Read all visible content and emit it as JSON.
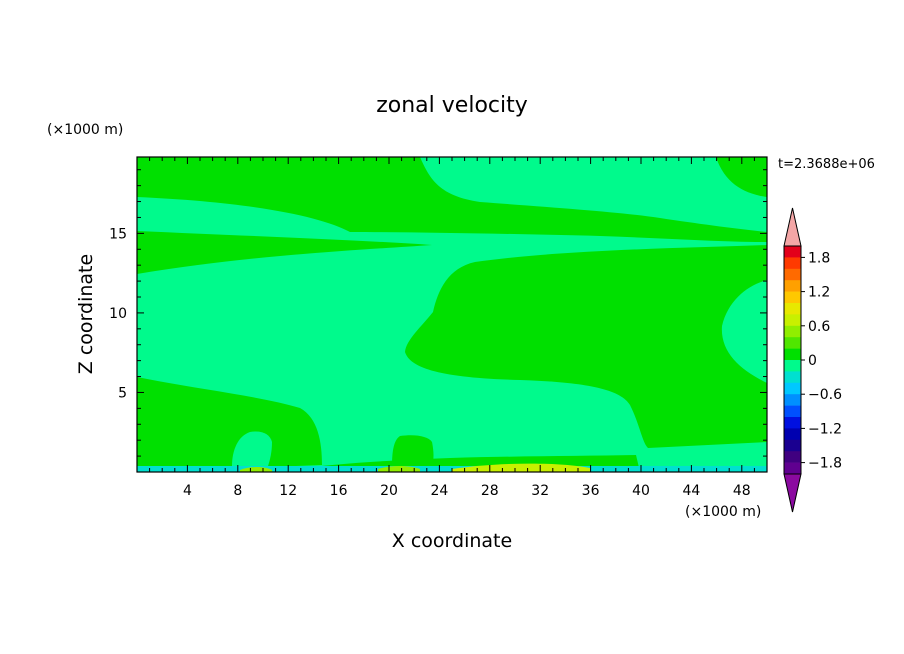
{
  "chart_data": {
    "type": "heatmap",
    "title": "zonal velocity",
    "xlabel": "X coordinate",
    "ylabel": "Z coordinate",
    "x_unit": "(×1000 m)",
    "y_unit": "(×1000 m)",
    "time_label": "t=2.3688e+06",
    "xlim": [
      0,
      50
    ],
    "ylim": [
      0,
      19.8
    ],
    "x_ticks": [
      "4",
      "8",
      "12",
      "16",
      "20",
      "24",
      "28",
      "32",
      "36",
      "40",
      "44",
      "48"
    ],
    "x_tick_values": [
      4,
      8,
      12,
      16,
      20,
      24,
      28,
      32,
      36,
      40,
      44,
      48
    ],
    "y_ticks": [
      "5",
      "10",
      "15"
    ],
    "y_tick_values": [
      5,
      10,
      15
    ],
    "colorbar": {
      "range": [
        -2,
        2
      ],
      "step": 0.2,
      "labels": [
        "1.8",
        "1.2",
        "0.6",
        "0",
        "−0.6",
        "−1.2",
        "−1.8"
      ],
      "label_values": [
        1.8,
        1.2,
        0.6,
        0,
        -0.6,
        -1.2,
        -1.8
      ],
      "over_color": "#f4a6a6",
      "under_color": "#8b0aa0",
      "colors": [
        "#e3001a",
        "#ff3a00",
        "#ff6a00",
        "#ffa000",
        "#ffc800",
        "#e8e800",
        "#c8f000",
        "#90ee00",
        "#50e600",
        "#00e000",
        "#00fa8c",
        "#00e0d0",
        "#00c8ff",
        "#0090ff",
        "#0050ff",
        "#0010e0",
        "#0000b0",
        "#1a0090",
        "#400080",
        "#600090"
      ]
    },
    "regions": {
      "background_value": -0.1,
      "positive_value": 0.1,
      "bottom_strip_value": -0.5,
      "bottom_highlight_value": 0.5
    }
  }
}
